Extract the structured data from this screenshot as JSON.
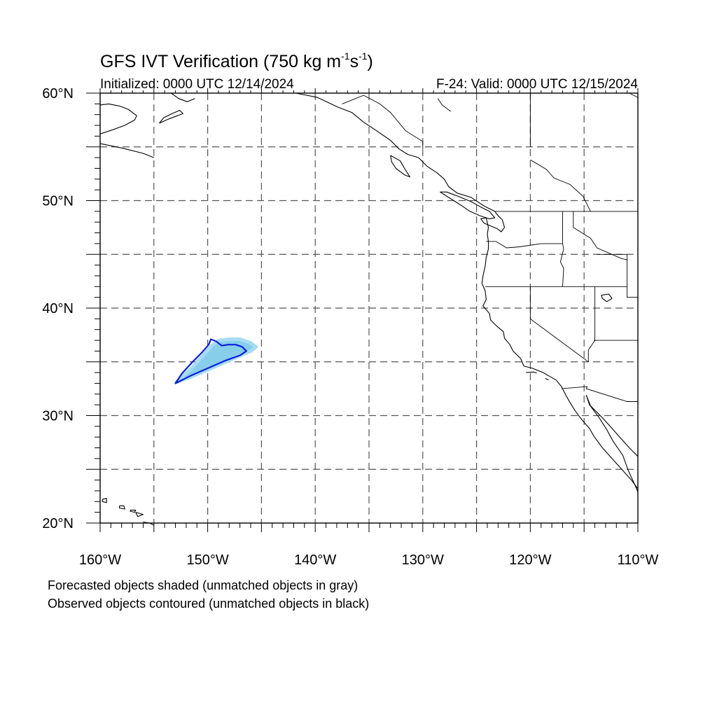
{
  "header": {
    "title_main": "GFS IVT Verification (750 kg m",
    "title_exp1": "-1",
    "title_mid": "s",
    "title_exp2": "-1",
    "title_end": ")",
    "initialized": "Initialized: 0000 UTC 12/14/2024",
    "valid": "F-24: Valid: 0000 UTC 12/15/2024"
  },
  "map": {
    "lon_range": [
      -160,
      -110
    ],
    "lat_range": [
      20,
      60
    ],
    "grid_lon": [
      -155,
      -150,
      -145,
      -140,
      -135,
      -130,
      -125,
      -120,
      -115
    ],
    "grid_lat": [
      25,
      30,
      35,
      40,
      45,
      50,
      55
    ],
    "lat_labels": [
      {
        "lat": 60,
        "text": "60°N"
      },
      {
        "lat": 50,
        "text": "50°N"
      },
      {
        "lat": 40,
        "text": "40°N"
      },
      {
        "lat": 30,
        "text": "30°N"
      },
      {
        "lat": 20,
        "text": "20°N"
      }
    ],
    "lon_labels": [
      {
        "lon": -160,
        "text": "160°W"
      },
      {
        "lon": -150,
        "text": "150°W"
      },
      {
        "lon": -140,
        "text": "140°W"
      },
      {
        "lon": -130,
        "text": "130°W"
      },
      {
        "lon": -120,
        "text": "120°W"
      },
      {
        "lon": -110,
        "text": "110°W"
      }
    ],
    "forecast_object": {
      "fill": "#87ceeb",
      "edge": "#a6dcf2",
      "points": [
        [
          -152.9,
          33.1
        ],
        [
          -151.5,
          34.4
        ],
        [
          -150.5,
          35.5
        ],
        [
          -149.6,
          36.5
        ],
        [
          -148.9,
          37.0
        ],
        [
          -148.0,
          37.1
        ],
        [
          -147.0,
          37.1
        ],
        [
          -146.1,
          36.8
        ],
        [
          -145.5,
          36.4
        ],
        [
          -146.0,
          36.0
        ],
        [
          -147.4,
          35.4
        ],
        [
          -149.2,
          34.6
        ],
        [
          -151.3,
          33.7
        ],
        [
          -152.9,
          33.1
        ]
      ]
    },
    "observed_contour": {
      "color": "#0a1ee0",
      "points": [
        [
          -153.0,
          33.0
        ],
        [
          -152.4,
          33.9
        ],
        [
          -151.4,
          35.0
        ],
        [
          -150.5,
          35.9
        ],
        [
          -149.9,
          36.6
        ],
        [
          -149.7,
          37.1
        ],
        [
          -149.2,
          36.9
        ],
        [
          -148.7,
          36.5
        ],
        [
          -148.1,
          36.6
        ],
        [
          -147.4,
          36.6
        ],
        [
          -146.8,
          36.4
        ],
        [
          -146.4,
          36.0
        ],
        [
          -147.0,
          35.6
        ],
        [
          -148.4,
          35.1
        ],
        [
          -150.0,
          34.4
        ],
        [
          -151.6,
          33.7
        ],
        [
          -153.0,
          33.0
        ]
      ]
    },
    "coastlines": [
      [
        [
          -160,
          56.2
        ],
        [
          -158.8,
          56.6
        ],
        [
          -157.7,
          57.0
        ],
        [
          -156.8,
          57.5
        ],
        [
          -156.6,
          57.9
        ],
        [
          -157.4,
          58.5
        ],
        [
          -158.2,
          58.8
        ],
        [
          -159.2,
          59.0
        ],
        [
          -160,
          58.9
        ]
      ],
      [
        [
          -154.5,
          57.2
        ],
        [
          -153.6,
          57.6
        ],
        [
          -152.8,
          57.9
        ],
        [
          -152.3,
          58.1
        ],
        [
          -152.6,
          58.4
        ],
        [
          -153.3,
          58.1
        ],
        [
          -154.1,
          57.7
        ],
        [
          -154.5,
          57.2
        ]
      ],
      [
        [
          -153.4,
          60
        ],
        [
          -152.7,
          59.5
        ],
        [
          -151.9,
          59.2
        ],
        [
          -151.2,
          59.5
        ]
      ],
      [
        [
          -141.8,
          60
        ],
        [
          -139.8,
          59.6
        ],
        [
          -137.9,
          58.7
        ],
        [
          -136.6,
          58.2
        ],
        [
          -135.5,
          57.3
        ],
        [
          -134.3,
          56.5
        ],
        [
          -133.0,
          55.6
        ],
        [
          -132.2,
          54.8
        ],
        [
          -131.4,
          54.3
        ],
        [
          -130.4,
          54.0
        ],
        [
          -129.6,
          53.2
        ],
        [
          -128.7,
          52.6
        ],
        [
          -128.0,
          52.0
        ],
        [
          -127.6,
          51.3
        ],
        [
          -126.8,
          50.7
        ],
        [
          -125.5,
          50.3
        ],
        [
          -124.3,
          49.5
        ],
        [
          -123.3,
          49.0
        ],
        [
          -123.0,
          48.6
        ],
        [
          -122.6,
          48.2
        ],
        [
          -122.4,
          47.5
        ],
        [
          -122.7,
          47.1
        ],
        [
          -123.1,
          47.4
        ],
        [
          -123.6,
          47.6
        ],
        [
          -124.3,
          47.9
        ],
        [
          -124.6,
          48.3
        ],
        [
          -124.1,
          48.4
        ],
        [
          -123.9,
          47.5
        ],
        [
          -124.0,
          46.9
        ],
        [
          -123.9,
          46.2
        ],
        [
          -123.9,
          45.5
        ],
        [
          -124.1,
          44.7
        ],
        [
          -124.2,
          43.9
        ],
        [
          -124.4,
          43.0
        ],
        [
          -124.5,
          42.3
        ],
        [
          -124.2,
          41.6
        ],
        [
          -124.1,
          40.8
        ],
        [
          -124.4,
          40.2
        ],
        [
          -123.8,
          39.5
        ],
        [
          -123.7,
          38.9
        ],
        [
          -123.1,
          38.3
        ],
        [
          -122.5,
          37.8
        ],
        [
          -122.4,
          37.2
        ],
        [
          -121.9,
          36.6
        ],
        [
          -121.6,
          36.0
        ],
        [
          -120.9,
          35.3
        ],
        [
          -120.6,
          34.6
        ],
        [
          -119.8,
          34.4
        ],
        [
          -118.8,
          34.0
        ],
        [
          -118.3,
          33.7
        ],
        [
          -117.6,
          33.3
        ],
        [
          -117.1,
          32.7
        ],
        [
          -116.7,
          31.9
        ],
        [
          -116.3,
          31.2
        ],
        [
          -115.8,
          30.4
        ],
        [
          -115.2,
          29.6
        ],
        [
          -114.5,
          28.8
        ],
        [
          -114.1,
          28.1
        ],
        [
          -113.3,
          27.0
        ],
        [
          -112.4,
          26.0
        ],
        [
          -111.5,
          25.0
        ],
        [
          -110.6,
          24.0
        ],
        [
          -110.0,
          23.2
        ]
      ],
      [
        [
          -110,
          22.9
        ],
        [
          -110.3,
          23.6
        ],
        [
          -110.9,
          24.9
        ],
        [
          -111.4,
          26.3
        ],
        [
          -112.3,
          27.6
        ],
        [
          -112.9,
          28.7
        ],
        [
          -113.6,
          29.8
        ],
        [
          -114.5,
          31.0
        ],
        [
          -114.8,
          31.9
        ]
      ],
      [
        [
          -114.8,
          31.9
        ],
        [
          -114.4,
          30.9
        ],
        [
          -113.3,
          29.8
        ],
        [
          -112.4,
          28.8
        ],
        [
          -111.6,
          27.9
        ],
        [
          -110.8,
          27.0
        ],
        [
          -110.0,
          26.2
        ]
      ],
      [
        [
          -128.4,
          50.8
        ],
        [
          -127.6,
          50.3
        ],
        [
          -126.5,
          49.6
        ],
        [
          -125.6,
          49.0
        ],
        [
          -124.7,
          48.6
        ],
        [
          -123.8,
          48.3
        ],
        [
          -123.3,
          48.4
        ],
        [
          -123.8,
          49.0
        ],
        [
          -124.6,
          49.4
        ],
        [
          -125.5,
          49.9
        ],
        [
          -126.7,
          50.4
        ],
        [
          -127.8,
          50.8
        ],
        [
          -128.4,
          50.8
        ]
      ],
      [
        [
          -133.0,
          54.2
        ],
        [
          -132.1,
          53.7
        ],
        [
          -131.7,
          53.0
        ],
        [
          -131.2,
          52.2
        ],
        [
          -131.7,
          52.4
        ],
        [
          -132.5,
          53.0
        ],
        [
          -132.9,
          53.6
        ],
        [
          -133.0,
          54.2
        ]
      ],
      [
        [
          -120.4,
          34.0
        ],
        [
          -119.7,
          34.05
        ],
        [
          -119.4,
          33.95
        ]
      ],
      [
        [
          -118.6,
          33.45
        ],
        [
          -118.3,
          33.3
        ]
      ],
      [
        [
          -113.4,
          41.2
        ],
        [
          -112.7,
          41.3
        ],
        [
          -112.4,
          40.9
        ],
        [
          -112.9,
          40.6
        ],
        [
          -113.3,
          40.9
        ],
        [
          -113.4,
          41.2
        ]
      ],
      [
        [
          -160,
          55.3
        ],
        [
          -158.0,
          54.9
        ],
        [
          -156.0,
          54.4
        ],
        [
          -155.0,
          54.0
        ]
      ],
      [
        [
          -159.8,
          22.2
        ],
        [
          -159.4,
          22.3
        ],
        [
          -159.4,
          21.9
        ],
        [
          -159.8,
          22.0
        ],
        [
          -159.8,
          22.2
        ]
      ],
      [
        [
          -158.2,
          21.6
        ],
        [
          -157.8,
          21.6
        ],
        [
          -157.7,
          21.3
        ],
        [
          -158.2,
          21.4
        ],
        [
          -158.2,
          21.6
        ]
      ],
      [
        [
          -157.2,
          21.2
        ],
        [
          -156.7,
          21.2
        ],
        [
          -156.8,
          21.0
        ],
        [
          -157.2,
          21.1
        ],
        [
          -157.2,
          21.2
        ]
      ],
      [
        [
          -156.7,
          21.0
        ],
        [
          -156.0,
          20.8
        ],
        [
          -156.5,
          20.6
        ],
        [
          -156.7,
          21.0
        ]
      ],
      [
        [
          -156.0,
          20.1
        ],
        [
          -155.4,
          20.0
        ],
        [
          -155.0,
          19.8
        ]
      ]
    ],
    "borders": [
      [
        [
          -141,
          60
        ],
        [
          -141,
          60
        ]
      ],
      [
        [
          -137.5,
          59.0
        ],
        [
          -135.5,
          59.8
        ],
        [
          -134.0,
          59.0
        ],
        [
          -133.0,
          58.2
        ],
        [
          -131.6,
          56.5
        ],
        [
          -130.0,
          55.5
        ],
        [
          -130.0,
          54.8
        ]
      ],
      [
        [
          -123.3,
          49.0
        ],
        [
          -110,
          49.0
        ]
      ],
      [
        [
          -117.0,
          49.0
        ],
        [
          -117.0,
          46.0
        ],
        [
          -116.9,
          45.5
        ],
        [
          -117.2,
          44.3
        ],
        [
          -116.9,
          43.7
        ],
        [
          -117.0,
          42.0
        ]
      ],
      [
        [
          -124.1,
          46.2
        ],
        [
          -123.2,
          46.2
        ],
        [
          -122.2,
          45.6
        ],
        [
          -121.0,
          45.7
        ],
        [
          -119.0,
          46.0
        ],
        [
          -117.0,
          46.0
        ]
      ],
      [
        [
          -124.2,
          42.0
        ],
        [
          -111.0,
          42.0
        ]
      ],
      [
        [
          -120.0,
          42.0
        ],
        [
          -120.0,
          39.0
        ],
        [
          -114.6,
          35.0
        ]
      ],
      [
        [
          -114.0,
          42.0
        ],
        [
          -114.0,
          37.0
        ],
        [
          -114.6,
          36.1
        ],
        [
          -114.6,
          35.0
        ]
      ],
      [
        [
          -114.1,
          37.0
        ],
        [
          -110,
          37.0
        ]
      ],
      [
        [
          -114.7,
          32.7
        ],
        [
          -117.1,
          32.5
        ]
      ],
      [
        [
          -114.7,
          32.7
        ],
        [
          -114.8,
          32.5
        ],
        [
          -111.0,
          31.3
        ],
        [
          -110,
          31.3
        ]
      ],
      [
        [
          -120.0,
          55.0
        ],
        [
          -120.0,
          60.0
        ]
      ],
      [
        [
          -111.0,
          45.0
        ],
        [
          -111.0,
          41.0
        ],
        [
          -110,
          41.0
        ]
      ],
      [
        [
          -116.0,
          49.0
        ],
        [
          -116.0,
          47.5
        ],
        [
          -114.4,
          46.5
        ],
        [
          -113.8,
          45.6
        ],
        [
          -111.5,
          44.6
        ],
        [
          -111.0,
          44.5
        ]
      ],
      [
        [
          -111.0,
          45.0
        ],
        [
          -113.8,
          45.0
        ]
      ]
    ],
    "inland": [
      [
        [
          -120.0,
          53.8
        ],
        [
          -118.5,
          52.9
        ],
        [
          -117.8,
          52.1
        ],
        [
          -116.3,
          51.5
        ],
        [
          -115.1,
          50.4
        ],
        [
          -114.4,
          49.0
        ]
      ],
      [
        [
          -128.6,
          59.5
        ],
        [
          -128.2,
          58.9
        ],
        [
          -127.4,
          58.3
        ]
      ],
      [
        [
          -110.8,
          60
        ],
        [
          -110.0,
          59.6
        ]
      ]
    ]
  },
  "notes": {
    "line1": "Forecasted objects shaded (unmatched objects in gray)",
    "line2": "Observed objects contoured (unmatched objects in black)"
  }
}
